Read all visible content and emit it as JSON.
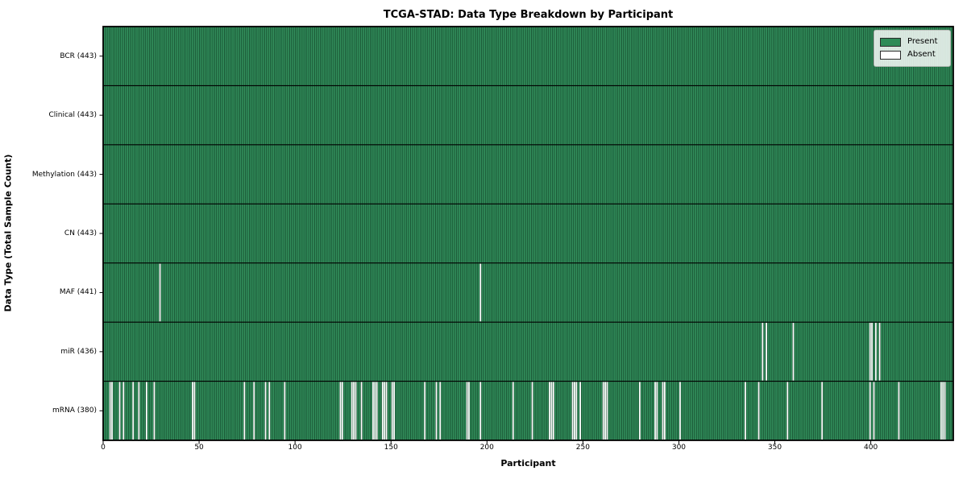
{
  "chart_data": {
    "type": "heatmap",
    "title": "TCGA-STAD: Data Type Breakdown by Participant",
    "xlabel": "Participant",
    "ylabel": "Data Type (Total Sample Count)",
    "n_participants": 443,
    "xlim": [
      0,
      443
    ],
    "x_ticks": [
      0,
      50,
      100,
      150,
      200,
      250,
      300,
      350,
      400
    ],
    "grid": false,
    "legend_position": "upper right",
    "legend": [
      {
        "label": "Present",
        "color": "#2e8b57"
      },
      {
        "label": "Absent",
        "color": "#ffffff"
      }
    ],
    "colors": {
      "present": "#2e8b57",
      "present_highlight": "#3fa06d",
      "bar_edge": "#0d331e",
      "absent": "#ffffff",
      "axis": "#000000"
    },
    "rows": [
      {
        "name": "BCR",
        "total": 443,
        "label": "BCR (443)",
        "absent_indices": []
      },
      {
        "name": "Clinical",
        "total": 443,
        "label": "Clinical (443)",
        "absent_indices": []
      },
      {
        "name": "Methylation",
        "total": 443,
        "label": "Methylation (443)",
        "absent_indices": []
      },
      {
        "name": "CN",
        "total": 443,
        "label": "CN (443)",
        "absent_indices": []
      },
      {
        "name": "MAF",
        "total": 441,
        "label": "MAF (441)",
        "absent_indices": [
          29,
          196
        ]
      },
      {
        "name": "miR",
        "total": 436,
        "label": "miR (436)",
        "absent_indices": [
          343,
          345,
          359,
          399,
          400,
          402,
          404
        ]
      },
      {
        "name": "mRNA",
        "total": 380,
        "label": "mRNA (380)",
        "absent_indices": [
          3,
          4,
          8,
          10,
          15,
          18,
          22,
          26,
          46,
          47,
          73,
          78,
          84,
          86,
          94,
          123,
          124,
          129,
          130,
          131,
          134,
          140,
          141,
          142,
          145,
          146,
          147,
          150,
          151,
          167,
          173,
          175,
          189,
          190,
          196,
          213,
          223,
          232,
          233,
          234,
          244,
          245,
          246,
          248,
          260,
          261,
          262,
          279,
          287,
          288,
          291,
          292,
          300,
          334,
          341,
          356,
          374,
          399,
          401,
          414,
          436,
          437,
          438
        ]
      }
    ]
  }
}
